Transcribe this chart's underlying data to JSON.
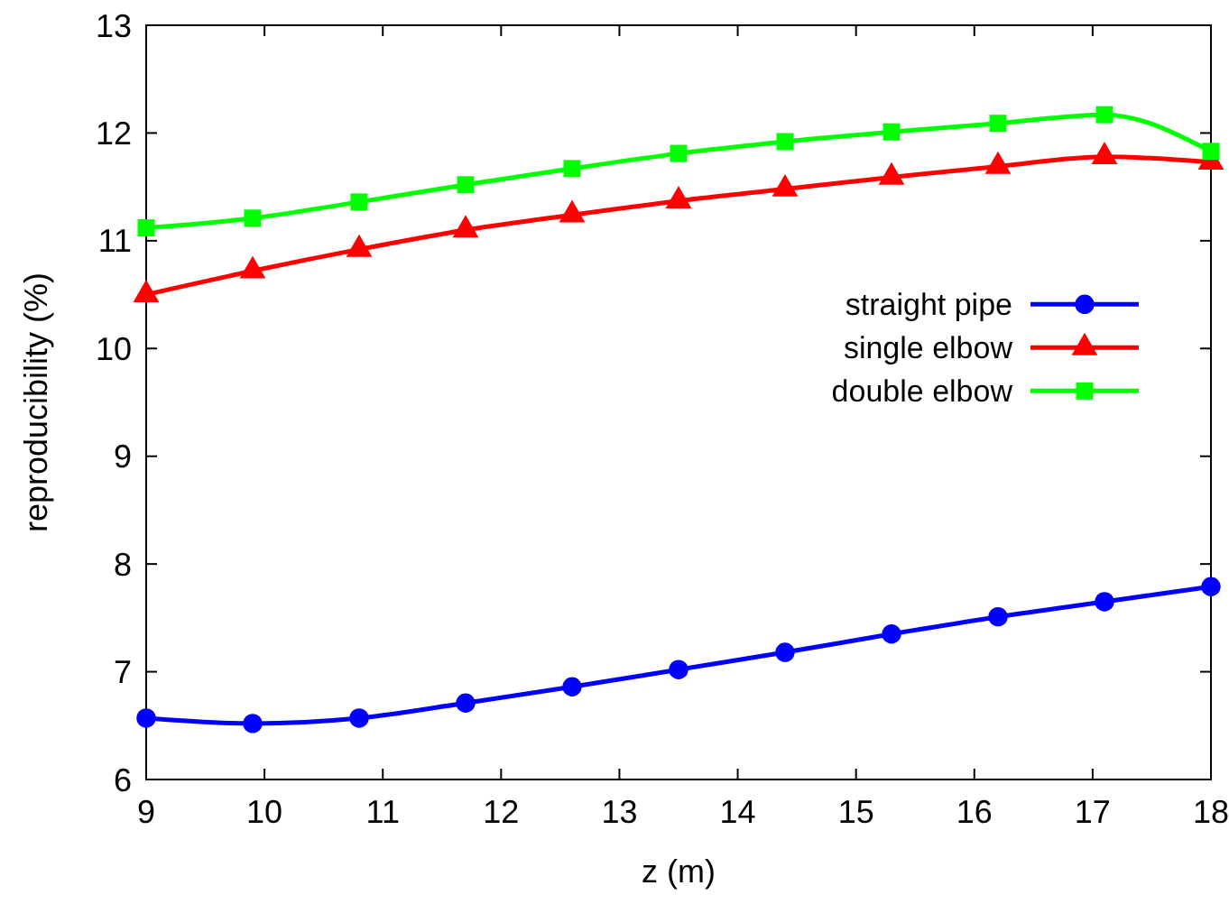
{
  "chart_data": {
    "type": "line",
    "xlabel": "z (m)",
    "ylabel": "reproducibility (%)",
    "x": [
      9,
      9.9,
      10.8,
      11.7,
      12.6,
      13.5,
      14.4,
      15.3,
      16.2,
      17.1,
      18
    ],
    "series": [
      {
        "name": "straight pipe",
        "color": "#0000ff",
        "marker": "circle",
        "values": [
          6.57,
          6.52,
          6.57,
          6.71,
          6.86,
          7.02,
          7.18,
          7.35,
          7.51,
          7.65,
          7.79
        ]
      },
      {
        "name": "single elbow",
        "color": "#ff0000",
        "marker": "triangle",
        "values": [
          10.5,
          10.72,
          10.92,
          11.1,
          11.24,
          11.37,
          11.48,
          11.59,
          11.69,
          11.78,
          11.73
        ]
      },
      {
        "name": "double elbow",
        "color": "#00ff00",
        "marker": "square",
        "values": [
          11.12,
          11.21,
          11.36,
          11.52,
          11.67,
          11.81,
          11.92,
          12.01,
          12.09,
          12.17,
          11.83
        ]
      }
    ],
    "xlim": [
      9,
      18
    ],
    "xticks": [
      9,
      10,
      11,
      12,
      13,
      14,
      15,
      16,
      17,
      18
    ],
    "ylim": [
      6,
      13
    ],
    "yticks": [
      6,
      7,
      8,
      9,
      10,
      11,
      12,
      13
    ],
    "grid": false,
    "legend": "right",
    "line_style": "solid"
  }
}
